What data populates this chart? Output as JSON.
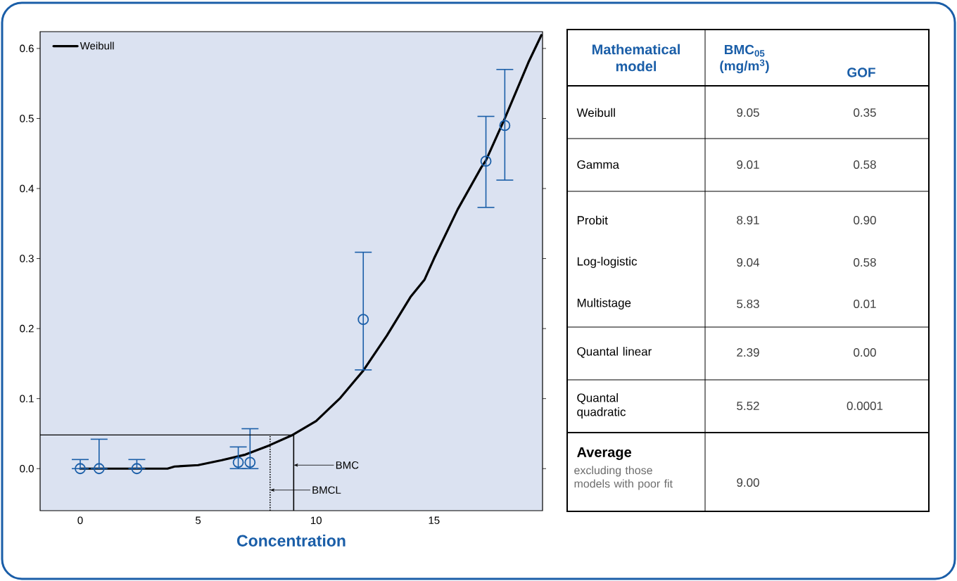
{
  "chart_data": [
    {
      "type": "line",
      "xlabel": "Concentration",
      "xlim": [
        -1.7,
        19.6
      ],
      "ylim": [
        -0.06,
        0.624
      ],
      "xticks": [
        0,
        5,
        10,
        15
      ],
      "yticks": [
        {
          "value": 0,
          "label": "0.0"
        },
        0.1,
        0.2,
        0.3,
        0.4,
        0.5,
        0.6
      ],
      "legend": "top left",
      "series": [
        {
          "name": "Weibull",
          "type": "line",
          "color": "#000000",
          "x": [
            0,
            1,
            2,
            3,
            3.7,
            4,
            5,
            6,
            7,
            8,
            9,
            10,
            11,
            12,
            13,
            14,
            14.6,
            15,
            16,
            17,
            17.2,
            18,
            19,
            19.55
          ],
          "values": [
            0,
            0,
            0,
            0,
            0,
            0.003,
            0.005,
            0.012,
            0.02,
            0.033,
            0.048,
            0.068,
            0.1,
            0.14,
            0.19,
            0.245,
            0.27,
            0.3,
            0.37,
            0.43,
            0.44,
            0.5,
            0.58,
            0.619
          ]
        },
        {
          "type": "scatter",
          "marker": "circle",
          "color": "#1a5ea8",
          "x": [
            0,
            0.8,
            2.4,
            6.7,
            7.2,
            12.0,
            17.2,
            18.0
          ],
          "values": [
            0,
            0,
            0,
            0.009,
            0.009,
            0.213,
            0.439,
            0.49
          ],
          "errors": [
            [
              0,
              0.013
            ],
            [
              0,
              0.042
            ],
            [
              0,
              0.013
            ],
            [
              0,
              0.031
            ],
            [
              0,
              0.057
            ],
            [
              0.141,
              0.309
            ],
            [
              0.373,
              0.503
            ],
            [
              0.412,
              0.57
            ]
          ]
        }
      ],
      "ref_lines": [
        {
          "axis": "x",
          "value": 9.05,
          "label": "BMC"
        },
        {
          "axis": "x",
          "value": 8.05,
          "label": "BMCL",
          "line_style": "dotted"
        },
        {
          "axis": "y",
          "value": 0.048
        }
      ]
    },
    {
      "type": "other",
      "xlabel": "Mathematical model",
      "categories": [
        "Weibull",
        "Gamma",
        "Probit",
        "Log-logistic",
        "Multistage",
        "Quantal linear",
        "Quantal quadratic",
        "Average"
      ],
      "series": [
        {
          "name": "BMC$_{05}$ (mg/m$^{3}$)",
          "values": [
            9.05,
            9.01,
            8.91,
            9.04,
            5.83,
            2.39,
            5.52,
            9.0
          ],
          "value_labels": [
            "9.05",
            "9.01",
            "8.91",
            "9.04",
            "5.83",
            "2.39",
            "5.52",
            "9.00"
          ]
        },
        {
          "name": "GOF",
          "values": [
            0.35,
            0.58,
            0.9,
            0.58,
            0.01,
            0.0,
            0.0001,
            null
          ],
          "value_labels": [
            "0.35",
            "0.58",
            "0.90",
            "0.58",
            "0.01",
            "0.00",
            "0.0001",
            null
          ]
        }
      ],
      "annotations": [
        "excluding those models with poor fit"
      ]
    }
  ]
}
